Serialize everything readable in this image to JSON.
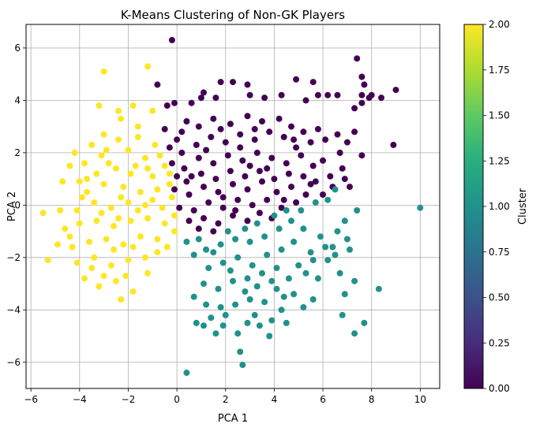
{
  "chart_data": {
    "type": "scatter",
    "title": "K-Means Clustering of Non-GK Players",
    "xlabel": "PCA 1",
    "ylabel": "PCA 2",
    "xlim": [
      -6.2,
      10.8
    ],
    "ylim": [
      -7.0,
      6.9
    ],
    "xticks": [
      -6,
      -4,
      -2,
      0,
      2,
      4,
      6,
      8,
      10
    ],
    "yticks": [
      -6,
      -4,
      -2,
      0,
      2,
      4,
      6
    ],
    "grid": true,
    "colormap": "viridis",
    "marker_size": 8,
    "colorbar": {
      "label": "Cluster",
      "min": 0.0,
      "max": 2.0,
      "ticks": [
        "0.00",
        "0.25",
        "0.50",
        "0.75",
        "1.00",
        "1.25",
        "1.50",
        "1.75",
        "2.00"
      ]
    },
    "cluster_colors": {
      "0": "#440154",
      "1": "#21918c",
      "2": "#fde725"
    },
    "clusters": [
      {
        "value": 0,
        "points": [
          [
            -0.2,
            6.3
          ],
          [
            1.8,
            4.7
          ],
          [
            2.3,
            4.7
          ],
          [
            2.9,
            4.6
          ],
          [
            4.9,
            4.8
          ],
          [
            5.6,
            4.7
          ],
          [
            7.4,
            5.6
          ],
          [
            7.6,
            4.9
          ],
          [
            7.7,
            4.6
          ],
          [
            8.0,
            4.2
          ],
          [
            8.4,
            4.1
          ],
          [
            9.0,
            4.4
          ],
          [
            7.9,
            4.1
          ],
          [
            7.6,
            4.2
          ],
          [
            6.6,
            4.2
          ],
          [
            6.2,
            4.2
          ],
          [
            5.8,
            4.2
          ],
          [
            -0.8,
            4.6
          ],
          [
            -0.1,
            3.9
          ],
          [
            -0.4,
            3.8
          ],
          [
            0.6,
            3.9
          ],
          [
            1.0,
            4.1
          ],
          [
            1.1,
            4.3
          ],
          [
            1.6,
            4.1
          ],
          [
            3.0,
            4.2
          ],
          [
            3.6,
            4.1
          ],
          [
            4.3,
            4.2
          ],
          [
            5.3,
            4.0
          ],
          [
            7.3,
            3.7
          ],
          [
            7.6,
            3.9
          ],
          [
            7.3,
            2.8
          ],
          [
            8.9,
            2.3
          ],
          [
            7.0,
            2.4
          ],
          [
            6.1,
            2.5
          ],
          [
            6.6,
            2.7
          ],
          [
            7.6,
            1.9
          ],
          [
            6.7,
            2.0
          ],
          [
            6.0,
            1.7
          ],
          [
            6.8,
            1.4
          ],
          [
            6.9,
            1.0
          ],
          [
            7.1,
            0.7
          ],
          [
            6.3,
            1.1
          ],
          [
            5.7,
            0.9
          ],
          [
            6.0,
            0.4
          ],
          [
            6.4,
            0.7
          ],
          [
            -0.5,
            2.9
          ],
          [
            0.0,
            2.5
          ],
          [
            0.4,
            3.2
          ],
          [
            0.9,
            3.0
          ],
          [
            1.5,
            3.3
          ],
          [
            2.2,
            3.1
          ],
          [
            2.9,
            3.4
          ],
          [
            3.5,
            3.2
          ],
          [
            4.2,
            3.3
          ],
          [
            4.7,
            3.0
          ],
          [
            5.2,
            2.8
          ],
          [
            5.8,
            2.9
          ],
          [
            5.5,
            2.4
          ],
          [
            4.9,
            2.2
          ],
          [
            4.4,
            2.6
          ],
          [
            3.8,
            2.8
          ],
          [
            3.2,
            2.5
          ],
          [
            2.6,
            2.7
          ],
          [
            2.0,
            2.4
          ],
          [
            1.4,
            2.6
          ],
          [
            0.8,
            2.3
          ],
          [
            0.2,
            2.0
          ],
          [
            -0.2,
            1.6
          ],
          [
            0.3,
            1.4
          ],
          [
            0.9,
            1.8
          ],
          [
            1.5,
            1.6
          ],
          [
            2.1,
            1.9
          ],
          [
            2.7,
            1.7
          ],
          [
            3.3,
            2.0
          ],
          [
            3.9,
            1.8
          ],
          [
            4.5,
            1.6
          ],
          [
            5.1,
            1.9
          ],
          [
            5.6,
            1.5
          ],
          [
            5.2,
            1.1
          ],
          [
            4.6,
            1.2
          ],
          [
            4.0,
            1.0
          ],
          [
            3.4,
            1.3
          ],
          [
            2.8,
            1.1
          ],
          [
            2.2,
            1.3
          ],
          [
            1.6,
            1.0
          ],
          [
            1.0,
            1.2
          ],
          [
            0.4,
            0.9
          ],
          [
            -0.1,
            0.6
          ],
          [
            0.5,
            0.4
          ],
          [
            1.1,
            0.7
          ],
          [
            1.7,
            0.5
          ],
          [
            2.3,
            0.8
          ],
          [
            2.9,
            0.6
          ],
          [
            3.5,
            0.9
          ],
          [
            4.1,
            0.5
          ],
          [
            4.7,
            0.7
          ],
          [
            5.3,
            0.4
          ],
          [
            4.9,
            0.1
          ],
          [
            4.3,
            -0.1
          ],
          [
            3.7,
            0.2
          ],
          [
            3.1,
            0.0
          ],
          [
            2.5,
            0.2
          ],
          [
            1.9,
            -0.1
          ],
          [
            1.3,
            0.1
          ],
          [
            0.7,
            -0.2
          ],
          [
            0.1,
            -0.1
          ],
          [
            0.5,
            -0.6
          ],
          [
            1.1,
            -0.5
          ],
          [
            1.7,
            -0.7
          ],
          [
            2.3,
            -0.4
          ],
          [
            2.9,
            -0.6
          ],
          [
            3.4,
            -0.3
          ],
          [
            3.9,
            -0.5
          ],
          [
            0.9,
            -0.9
          ],
          [
            1.5,
            -1.0
          ],
          [
            0.2,
            2.8
          ],
          [
            1.2,
            2.1
          ],
          [
            3.0,
            1.5
          ],
          [
            4.8,
            2.5
          ],
          [
            0.6,
            1.1
          ],
          [
            2.6,
            2.2
          ],
          [
            3.7,
            1.4
          ],
          [
            1.9,
            0.3
          ],
          [
            2.4,
            -0.2
          ],
          [
            0.0,
            1.1
          ],
          [
            -0.3,
            2.2
          ],
          [
            4.4,
            0.2
          ],
          [
            5.5,
            0.8
          ],
          [
            3.2,
            2.9
          ],
          [
            1.8,
            2.9
          ]
        ]
      },
      {
        "value": 1,
        "points": [
          [
            10.0,
            -0.1
          ],
          [
            7.4,
            -0.2
          ],
          [
            6.9,
            -0.6
          ],
          [
            6.6,
            -1.0
          ],
          [
            7.0,
            -1.3
          ],
          [
            6.4,
            -1.6
          ],
          [
            5.9,
            -1.2
          ],
          [
            5.5,
            -1.8
          ],
          [
            6.2,
            -2.1
          ],
          [
            5.0,
            -2.3
          ],
          [
            5.8,
            -2.8
          ],
          [
            6.7,
            -2.6
          ],
          [
            7.3,
            -2.9
          ],
          [
            8.3,
            -3.2
          ],
          [
            7.7,
            -4.5
          ],
          [
            7.3,
            -4.9
          ],
          [
            6.8,
            -4.2
          ],
          [
            6.9,
            -3.4
          ],
          [
            5.6,
            -3.6
          ],
          [
            5.2,
            -3.9
          ],
          [
            4.8,
            -3.4
          ],
          [
            4.3,
            -4.0
          ],
          [
            3.9,
            -4.4
          ],
          [
            3.4,
            -4.6
          ],
          [
            2.9,
            -4.5
          ],
          [
            2.5,
            -4.9
          ],
          [
            2.6,
            -5.6
          ],
          [
            2.7,
            -6.1
          ],
          [
            1.6,
            -4.9
          ],
          [
            1.9,
            -4.6
          ],
          [
            1.1,
            -4.6
          ],
          [
            0.8,
            -4.5
          ],
          [
            0.4,
            -6.4
          ],
          [
            0.7,
            -3.5
          ],
          [
            1.2,
            -3.8
          ],
          [
            1.8,
            -3.9
          ],
          [
            2.4,
            -3.8
          ],
          [
            3.0,
            -3.6
          ],
          [
            3.6,
            -3.7
          ],
          [
            4.1,
            -3.2
          ],
          [
            4.6,
            -2.8
          ],
          [
            4.1,
            -2.4
          ],
          [
            3.5,
            -2.6
          ],
          [
            2.9,
            -2.8
          ],
          [
            2.3,
            -2.9
          ],
          [
            1.7,
            -3.2
          ],
          [
            1.1,
            -3.0
          ],
          [
            1.3,
            -2.4
          ],
          [
            1.9,
            -2.2
          ],
          [
            2.5,
            -2.0
          ],
          [
            3.1,
            -2.3
          ],
          [
            3.7,
            -1.9
          ],
          [
            4.3,
            -1.7
          ],
          [
            4.8,
            -1.4
          ],
          [
            5.2,
            -0.9
          ],
          [
            4.7,
            -0.6
          ],
          [
            4.2,
            -0.9
          ],
          [
            3.6,
            -1.2
          ],
          [
            3.0,
            -1.4
          ],
          [
            2.4,
            -1.3
          ],
          [
            1.8,
            -1.5
          ],
          [
            1.2,
            -1.7
          ],
          [
            0.7,
            -1.9
          ],
          [
            0.4,
            -1.4
          ],
          [
            0.9,
            -1.3
          ],
          [
            5.1,
            -0.2
          ],
          [
            5.7,
            0.1
          ],
          [
            6.2,
            0.2
          ],
          [
            6.5,
            0.6
          ],
          [
            4.5,
            -0.2
          ],
          [
            4.0,
            -0.4
          ],
          [
            3.3,
            -0.7
          ],
          [
            2.8,
            -0.9
          ],
          [
            2.1,
            -1.0
          ],
          [
            1.5,
            -1.8
          ],
          [
            2.2,
            -2.5
          ],
          [
            2.8,
            -3.3
          ],
          [
            3.3,
            -3.1
          ],
          [
            3.9,
            -2.9
          ],
          [
            4.4,
            -3.5
          ],
          [
            5.3,
            -2.6
          ],
          [
            5.6,
            -2.1
          ],
          [
            6.1,
            -1.6
          ],
          [
            6.5,
            -1.9
          ],
          [
            7.1,
            -1.7
          ],
          [
            3.2,
            -4.2
          ],
          [
            2.0,
            -4.2
          ],
          [
            1.4,
            -4.3
          ],
          [
            3.8,
            -5.0
          ],
          [
            4.5,
            -4.5
          ]
        ]
      },
      {
        "value": 2,
        "points": [
          [
            -1.2,
            5.3
          ],
          [
            -3.0,
            5.1
          ],
          [
            -2.4,
            3.6
          ],
          [
            -1.0,
            3.6
          ],
          [
            -1.8,
            3.8
          ],
          [
            -3.2,
            3.8
          ],
          [
            -2.3,
            3.3
          ],
          [
            -1.6,
            3.0
          ],
          [
            -3.0,
            2.7
          ],
          [
            -2.4,
            2.5
          ],
          [
            -1.6,
            2.6
          ],
          [
            -0.9,
            2.3
          ],
          [
            -3.5,
            2.3
          ],
          [
            -4.2,
            2.0
          ],
          [
            -3.8,
            1.6
          ],
          [
            -4.4,
            1.5
          ],
          [
            -3.1,
            1.9
          ],
          [
            -2.0,
            2.1
          ],
          [
            -1.3,
            1.8
          ],
          [
            -0.7,
            1.9
          ],
          [
            -0.3,
            1.2
          ],
          [
            -1.0,
            1.1
          ],
          [
            -1.7,
            1.5
          ],
          [
            -2.5,
            1.4
          ],
          [
            -3.3,
            1.2
          ],
          [
            -4.0,
            0.9
          ],
          [
            -4.7,
            0.9
          ],
          [
            -3.7,
            0.5
          ],
          [
            -3.0,
            0.8
          ],
          [
            -2.2,
            0.7
          ],
          [
            -1.5,
            0.5
          ],
          [
            -0.8,
            0.6
          ],
          [
            -0.2,
            0.3
          ],
          [
            -0.6,
            -0.1
          ],
          [
            -1.3,
            0.0
          ],
          [
            -2.0,
            0.1
          ],
          [
            -2.7,
            -0.1
          ],
          [
            -3.4,
            0.1
          ],
          [
            -4.1,
            -0.2
          ],
          [
            -4.8,
            -0.2
          ],
          [
            -5.5,
            -0.3
          ],
          [
            -4.6,
            -0.9
          ],
          [
            -4.0,
            -0.7
          ],
          [
            -3.3,
            -0.6
          ],
          [
            -2.6,
            -0.8
          ],
          [
            -1.9,
            -0.6
          ],
          [
            -1.2,
            -0.5
          ],
          [
            -0.5,
            -0.7
          ],
          [
            -0.1,
            -1.0
          ],
          [
            -0.8,
            -1.3
          ],
          [
            -1.5,
            -1.2
          ],
          [
            -2.2,
            -1.5
          ],
          [
            -2.9,
            -1.3
          ],
          [
            -3.6,
            -1.4
          ],
          [
            -4.3,
            -1.6
          ],
          [
            -4.9,
            -1.5
          ],
          [
            -5.3,
            -2.1
          ],
          [
            -4.1,
            -2.2
          ],
          [
            -3.4,
            -2.0
          ],
          [
            -2.7,
            -2.3
          ],
          [
            -2.0,
            -2.1
          ],
          [
            -1.3,
            -2.0
          ],
          [
            -0.8,
            -1.8
          ],
          [
            -3.8,
            -2.8
          ],
          [
            -3.0,
            -2.7
          ],
          [
            -2.5,
            -2.9
          ],
          [
            -3.2,
            -3.1
          ],
          [
            -2.3,
            -3.6
          ],
          [
            -1.8,
            -3.3
          ],
          [
            -2.6,
            -1.7
          ],
          [
            -1.8,
            -1.6
          ],
          [
            -1.2,
            -2.6
          ],
          [
            -3.7,
            1.0
          ],
          [
            -2.8,
            1.6
          ],
          [
            -1.9,
            1.2
          ],
          [
            -1.2,
            1.4
          ],
          [
            -0.5,
            1.5
          ],
          [
            -2.3,
            0.3
          ],
          [
            -3.1,
            -0.3
          ],
          [
            -3.9,
            0.3
          ],
          [
            -1.6,
            -0.2
          ],
          [
            -2.4,
            -0.5
          ],
          [
            -0.4,
            -1.6
          ],
          [
            -4.4,
            -1.2
          ],
          [
            -3.5,
            -2.4
          ],
          [
            -2.1,
            -2.7
          ],
          [
            -1.0,
            0.2
          ],
          [
            -0.1,
            -0.4
          ],
          [
            -0.3,
            0.8
          ],
          [
            -2.9,
            2.1
          ]
        ]
      }
    ]
  }
}
